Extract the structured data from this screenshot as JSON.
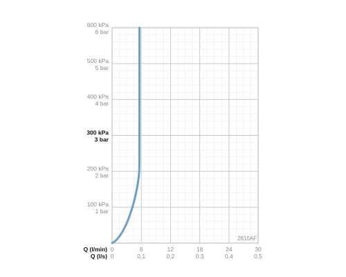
{
  "chart_data": {
    "type": "line",
    "code_label": "2610AF",
    "x_axis": {
      "label_primary": "Q (l/min)",
      "label_secondary": "Q (l/s)",
      "ticks_primary": [
        "0",
        "6",
        "12",
        "18",
        "24",
        "30"
      ],
      "ticks_secondary": [
        "0",
        "0.1",
        "0.2",
        "0.3",
        "0.4",
        "0.5"
      ],
      "range": [
        0,
        30
      ]
    },
    "y_axis": {
      "range": [
        0,
        600
      ],
      "ticks": [
        {
          "value": 100,
          "kpa": "100 kPa",
          "bar": "1 bar",
          "bold": false
        },
        {
          "value": 200,
          "kpa": "200 kPa",
          "bar": "2 bar",
          "bold": false
        },
        {
          "value": 300,
          "kpa": "300 kPa",
          "bar": "3 bar",
          "bold": true
        },
        {
          "value": 400,
          "kpa": "400 kPa",
          "bar": "4 bar",
          "bold": false
        },
        {
          "value": 500,
          "kpa": "500 kPa",
          "bar": "5 bar",
          "bold": false
        },
        {
          "value": 600,
          "kpa": "600 kPa",
          "bar": "6 bar",
          "bold": false
        }
      ]
    },
    "grid": true,
    "series": [
      {
        "color": "#6a9fcd",
        "points": [
          [
            0,
            0
          ],
          [
            0.4,
            3
          ],
          [
            1.0,
            10
          ],
          [
            1.6,
            20
          ],
          [
            2.2,
            33
          ],
          [
            2.8,
            49
          ],
          [
            3.4,
            68
          ],
          [
            3.9,
            88
          ],
          [
            4.4,
            110
          ],
          [
            4.8,
            132
          ],
          [
            5.2,
            158
          ],
          [
            5.45,
            182
          ],
          [
            5.6,
            200
          ],
          [
            5.62,
            260
          ],
          [
            5.62,
            400
          ],
          [
            5.62,
            600
          ]
        ]
      }
    ]
  }
}
